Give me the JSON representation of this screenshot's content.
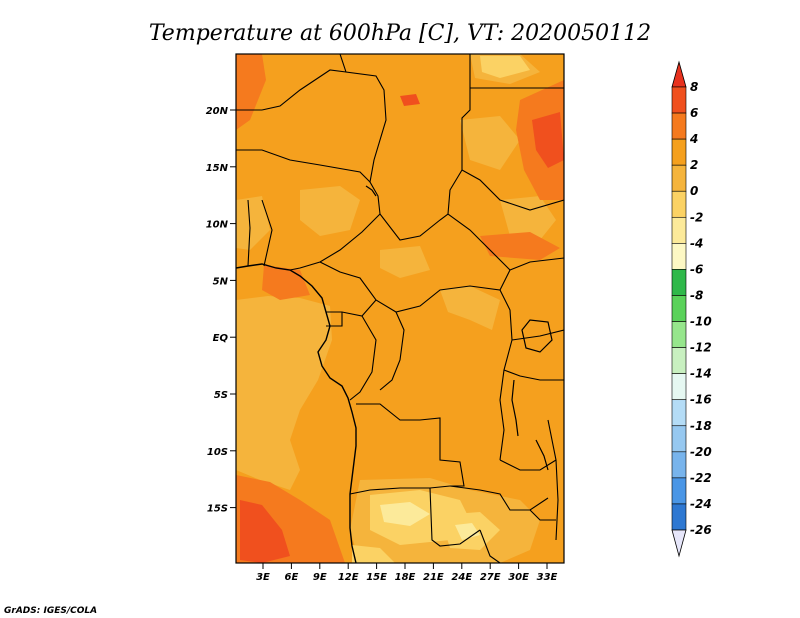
{
  "title": "Temperature at 600hPa [C], VT: 2020050112",
  "footer": "GrADS: IGES/COLA",
  "map": {
    "lat_labels": [
      "20N",
      "15N",
      "10N",
      "5N",
      "EQ",
      "5S",
      "10S",
      "15S"
    ],
    "lon_labels": [
      "3E",
      "6E",
      "9E",
      "12E",
      "15E",
      "18E",
      "21E",
      "24E",
      "27E",
      "30E",
      "33E"
    ]
  },
  "colorbar": {
    "labels": [
      "8",
      "6",
      "4",
      "2",
      "0",
      "-2",
      "-4",
      "-6",
      "-8",
      "-10",
      "-12",
      "-14",
      "-16",
      "-18",
      "-20",
      "-22",
      "-24",
      "-26"
    ],
    "colors": [
      "#e8321e",
      "#f0501e",
      "#f57a1e",
      "#f5a01e",
      "#f5b43c",
      "#fbd264",
      "#fcea9a",
      "#fdf8c4",
      "#2fb84a",
      "#5ad25a",
      "#96e68c",
      "#c8f0c0",
      "#e6f8f2",
      "#b4dcf6",
      "#96c8f0",
      "#78b4ec",
      "#4a96e6",
      "#2e78d2",
      "#1e5ab4",
      "#1e3c96",
      "#0a1464",
      "#e6e6fa"
    ]
  }
}
